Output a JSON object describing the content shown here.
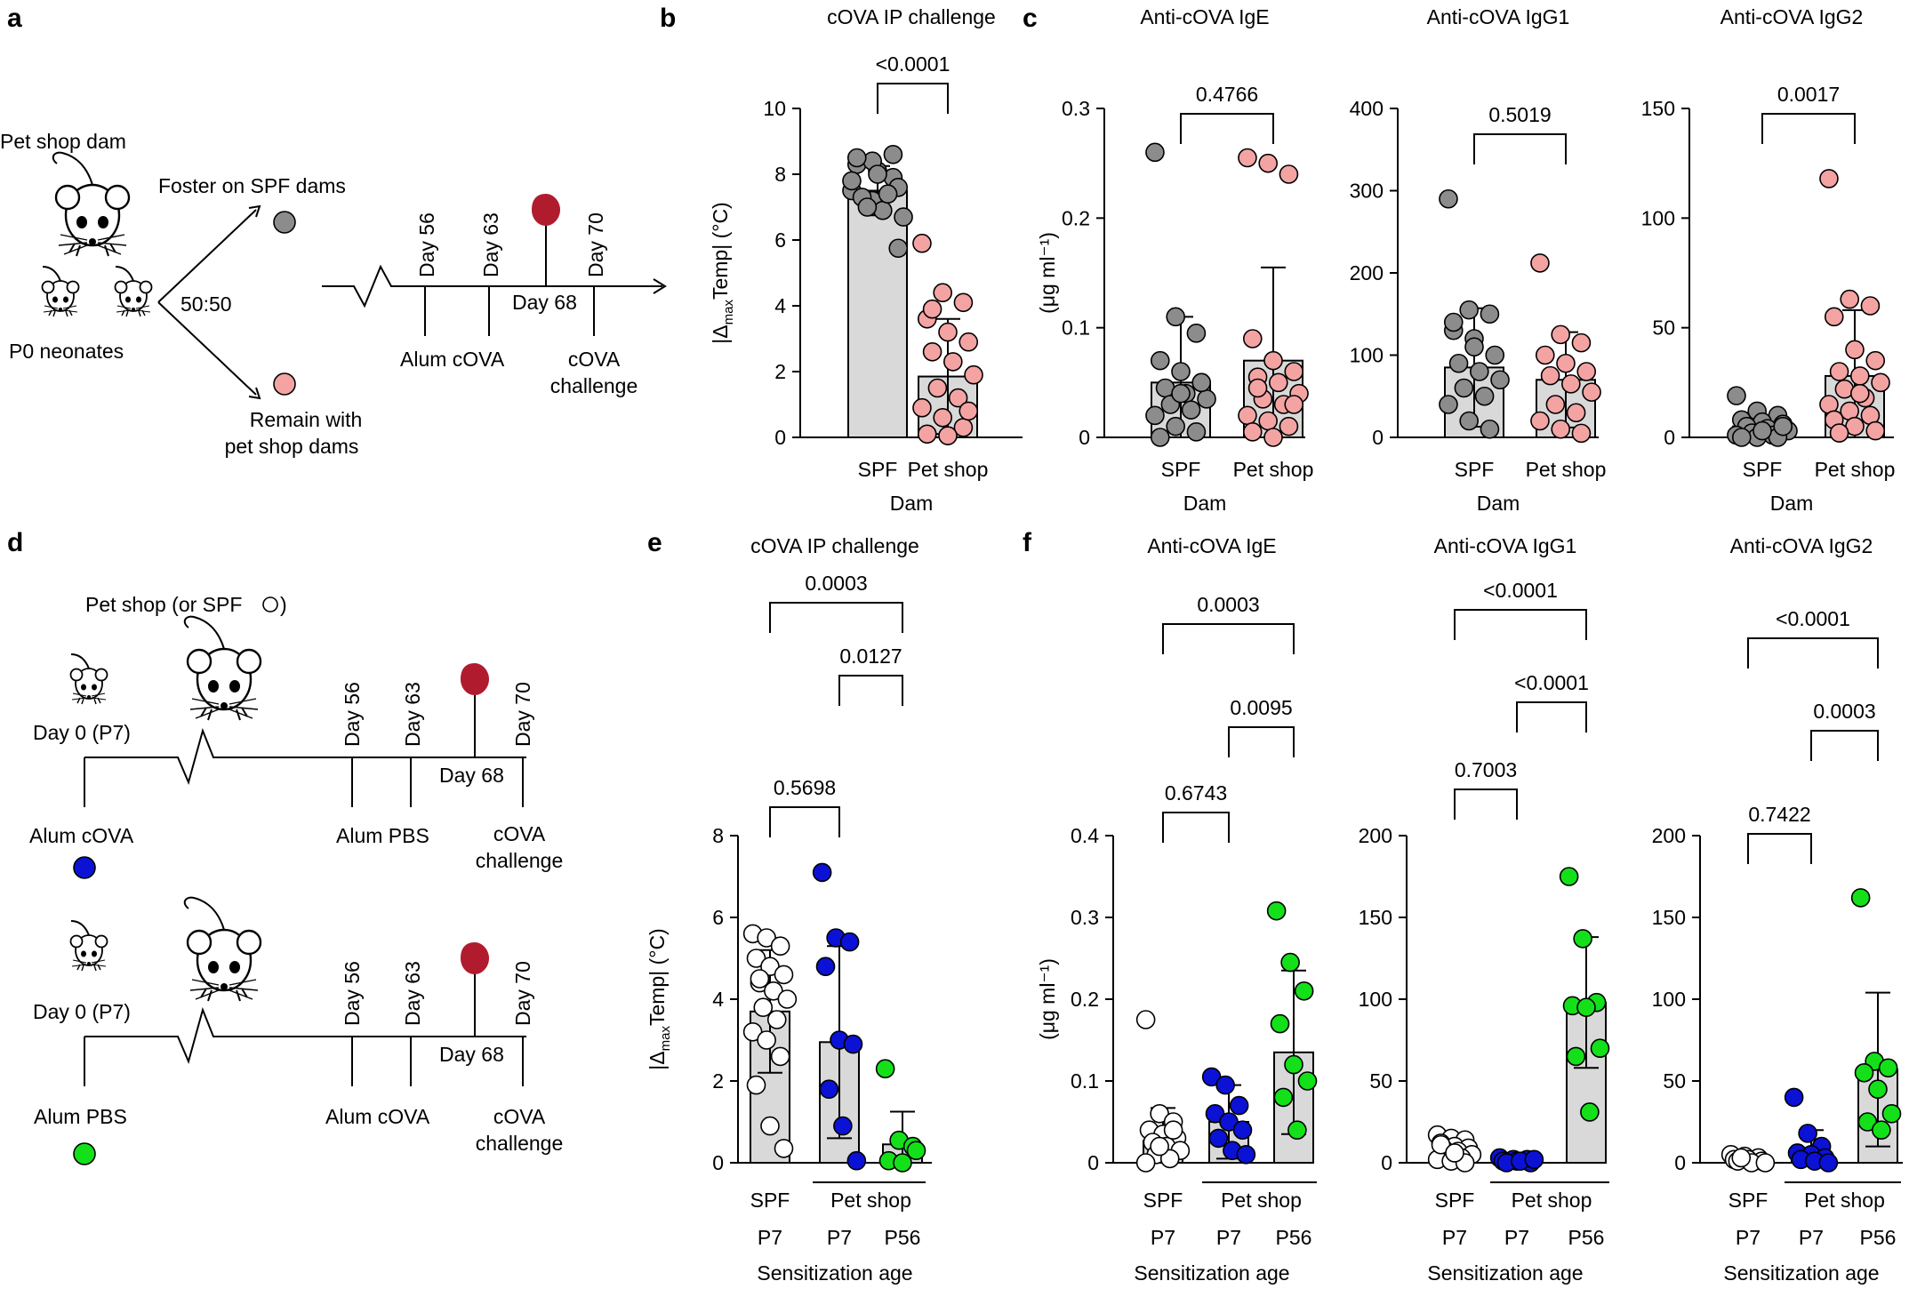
{
  "panels": {
    "a": {
      "letter": "a",
      "dam_label": "Pet shop dam",
      "neonates_label": "P0 neonates",
      "ratio": "50:50",
      "foster_label": "Foster on SPF dams",
      "remain_label_1": "Remain with",
      "remain_label_2": "pet shop dams",
      "day56": "Day 56",
      "day63": "Day 63",
      "day70": "Day 70",
      "day68": "Day 68",
      "alum_cova": "Alum cOVA",
      "cova_1": "cOVA",
      "cova_2": "challenge"
    },
    "b": {
      "letter": "b"
    },
    "c": {
      "letter": "c"
    },
    "d": {
      "letter": "d",
      "header": "Pet shop (or SPF",
      "row1": {
        "day0": "Day 0 (P7)",
        "day56": "Day 56",
        "day63": "Day 63",
        "day68": "Day 68",
        "day70": "Day 70",
        "left_label": "Alum cOVA",
        "mid_label": "Alum PBS",
        "end_1": "cOVA",
        "end_2": "challenge"
      },
      "row2": {
        "day0": "Day 0 (P7)",
        "day56": "Day 56",
        "day63": "Day 63",
        "day68": "Day 68",
        "day70": "Day 70",
        "left_label": "Alum PBS",
        "mid_label": "Alum cOVA",
        "end_1": "cOVA",
        "end_2": "challenge"
      }
    },
    "e": {
      "letter": "e"
    },
    "f": {
      "letter": "f"
    }
  },
  "colors": {
    "spf_dam": "#8c8c8c",
    "pet_shop_dam": "#f4a3a3",
    "spf_p7": "#ffffff",
    "pet_p7": "#0b12d6",
    "pet_p56": "#14e01a",
    "blood_drop": "#b01c2e",
    "bar": "#d9d9d9"
  },
  "chart_data": [
    {
      "id": "b",
      "type": "bar",
      "title": "cOVA IP challenge",
      "ylabel": "|Δmax Temp| (°C)",
      "xlabel": "Dam",
      "ylim": [
        0,
        10
      ],
      "yticks": [
        0,
        2,
        4,
        6,
        8,
        10
      ],
      "categories": [
        "SPF",
        "Pet shop"
      ],
      "bars": [
        7.5,
        1.85
      ],
      "sd": [
        0.75,
        1.75
      ],
      "points": [
        [
          7.5,
          7.2,
          7.9,
          8.3,
          8.1,
          7.6,
          7.3,
          6.9,
          6.7,
          7.0,
          7.4,
          7.8,
          8.4,
          8.6,
          8.5,
          8.0,
          5.75
        ],
        [
          5.9,
          4.4,
          4.1,
          3.6,
          3.2,
          2.9,
          2.6,
          2.3,
          1.9,
          1.5,
          1.2,
          0.9,
          0.6,
          0.3,
          0.1,
          0.05,
          0.8,
          3.9
        ]
      ],
      "brackets": [
        {
          "from": 0,
          "to": 1,
          "label": "<0.0001"
        }
      ]
    },
    {
      "id": "c1",
      "type": "bar",
      "title": "Anti-cOVA IgE",
      "ylabel": "(μg ml⁻¹)",
      "xlabel": "Dam",
      "ylim": [
        0,
        0.3
      ],
      "yticks": [
        0,
        0.1,
        0.2,
        0.3
      ],
      "yticklabels": [
        "0",
        "0.1",
        "0.2",
        "0.3"
      ],
      "categories": [
        "SPF",
        "Pet shop"
      ],
      "bars": [
        0.05,
        0.07
      ],
      "sd": [
        0.06,
        0.085
      ],
      "points": [
        [
          0.26,
          0.11,
          0.095,
          0.07,
          0.06,
          0.05,
          0.045,
          0.04,
          0.035,
          0.03,
          0.025,
          0.02,
          0.01,
          0.005,
          0.0,
          0.04,
          0.05
        ],
        [
          0.255,
          0.25,
          0.24,
          0.09,
          0.07,
          0.06,
          0.055,
          0.05,
          0.04,
          0.035,
          0.03,
          0.02,
          0.015,
          0.01,
          0.005,
          0.0,
          0.03,
          0.045
        ]
      ],
      "brackets": [
        {
          "from": 0,
          "to": 1,
          "label": "0.4766"
        }
      ]
    },
    {
      "id": "c2",
      "type": "bar",
      "title": "Anti-cOVA IgG1",
      "ylabel": "",
      "xlabel": "Dam",
      "ylim": [
        0,
        400
      ],
      "yticks": [
        0,
        100,
        200,
        300,
        400
      ],
      "categories": [
        "SPF",
        "Pet shop"
      ],
      "bars": [
        85,
        70
      ],
      "sd": [
        72,
        58
      ],
      "points": [
        [
          290,
          155,
          150,
          130,
          120,
          100,
          90,
          80,
          70,
          60,
          50,
          40,
          20,
          10,
          140,
          110
        ],
        [
          212,
          125,
          115,
          100,
          90,
          80,
          75,
          65,
          55,
          40,
          30,
          20,
          10,
          5
        ]
      ],
      "brackets": [
        {
          "from": 0,
          "to": 1,
          "label": "0.5019"
        }
      ]
    },
    {
      "id": "c3",
      "type": "bar",
      "title": "Anti-cOVA IgG2",
      "ylabel": "",
      "xlabel": "Dam",
      "ylim": [
        0,
        150
      ],
      "yticks": [
        0,
        50,
        100,
        150
      ],
      "categories": [
        "SPF",
        "Pet shop"
      ],
      "bars": [
        5,
        28
      ],
      "sd": [
        5,
        30
      ],
      "points": [
        [
          19,
          12,
          10,
          8,
          7,
          6,
          5,
          4,
          3,
          2,
          1,
          1,
          0,
          0,
          0,
          3,
          5
        ],
        [
          118,
          63,
          60,
          55,
          40,
          35,
          30,
          28,
          25,
          22,
          18,
          15,
          12,
          10,
          8,
          5,
          3,
          2,
          20
        ]
      ],
      "brackets": [
        {
          "from": 0,
          "to": 1,
          "label": "0.0017"
        }
      ]
    },
    {
      "id": "e",
      "type": "bar",
      "title": "cOVA IP challenge",
      "ylabel": "|Δmax Temp| (°C)",
      "xlabel": "Sensitization age",
      "ylim": [
        0,
        8
      ],
      "yticks": [
        0,
        2,
        4,
        6,
        8
      ],
      "categories": [
        "P7",
        "P7",
        "P56"
      ],
      "group_labels": [
        "SPF",
        "Pet shop"
      ],
      "bars": [
        3.7,
        2.95,
        0.45
      ],
      "sd": [
        1.5,
        2.35,
        0.8
      ],
      "points": [
        [
          5.6,
          5.5,
          5.3,
          5.0,
          4.8,
          4.6,
          4.4,
          4.2,
          4.0,
          3.8,
          3.5,
          3.2,
          3.0,
          2.6,
          1.9,
          0.9,
          0.35,
          4.5
        ],
        [
          7.1,
          5.5,
          5.4,
          4.8,
          3.0,
          2.9,
          1.8,
          0.9,
          0.05
        ],
        [
          2.3,
          0.55,
          0.4,
          0.05,
          0.0,
          0.3
        ]
      ],
      "brackets": [
        {
          "from": 0,
          "to": 2,
          "label": "0.0003"
        },
        {
          "from": 1,
          "to": 2,
          "label": "0.0127"
        },
        {
          "from": 0,
          "to": 1,
          "label": "0.5698"
        }
      ]
    },
    {
      "id": "f1",
      "type": "bar",
      "title": "Anti-cOVA IgE",
      "ylabel": "(μg ml⁻¹)",
      "xlabel": "Sensitization age",
      "ylim": [
        0,
        0.4
      ],
      "yticks": [
        0,
        0.1,
        0.2,
        0.3,
        0.4
      ],
      "yticklabels": [
        "0",
        "0.1",
        "0.2",
        "0.3",
        "0.4"
      ],
      "categories": [
        "P7",
        "P7",
        "P56"
      ],
      "group_labels": [
        "SPF",
        "Pet shop"
      ],
      "bars": [
        0.027,
        0.05,
        0.135
      ],
      "sd": [
        0.04,
        0.045,
        0.1
      ],
      "points": [
        [
          0.175,
          0.06,
          0.05,
          0.04,
          0.035,
          0.03,
          0.025,
          0.02,
          0.015,
          0.01,
          0.005,
          0.0,
          0.02,
          0.04
        ],
        [
          0.105,
          0.095,
          0.07,
          0.06,
          0.05,
          0.04,
          0.03,
          0.015,
          0.01
        ],
        [
          0.308,
          0.245,
          0.21,
          0.17,
          0.12,
          0.1,
          0.08,
          0.04
        ]
      ],
      "brackets": [
        {
          "from": 0,
          "to": 2,
          "label": "0.0003"
        },
        {
          "from": 1,
          "to": 2,
          "label": "0.0095"
        },
        {
          "from": 0,
          "to": 1,
          "label": "0.6743"
        }
      ]
    },
    {
      "id": "f2",
      "type": "bar",
      "title": "Anti-cOVA IgG1",
      "ylabel": "",
      "xlabel": "Sensitization age",
      "ylim": [
        0,
        200
      ],
      "yticks": [
        0,
        50,
        100,
        150,
        200
      ],
      "categories": [
        "P7",
        "P7",
        "P56"
      ],
      "group_labels": [
        "SPF",
        "Pet shop"
      ],
      "bars": [
        8,
        1.5,
        98
      ],
      "sd": [
        6,
        1,
        40
      ],
      "points": [
        [
          17,
          15,
          14,
          12,
          10,
          9,
          8,
          7,
          5,
          4,
          3,
          2,
          1,
          0,
          11,
          6
        ],
        [
          3,
          2,
          2,
          1,
          1,
          0,
          0,
          1,
          2
        ],
        [
          175,
          137,
          98,
          96,
          95,
          70,
          65,
          31
        ]
      ],
      "brackets": [
        {
          "from": 0,
          "to": 2,
          "label": "<0.0001"
        },
        {
          "from": 1,
          "to": 2,
          "label": "<0.0001"
        },
        {
          "from": 0,
          "to": 1,
          "label": "0.7003"
        }
      ]
    },
    {
      "id": "f3",
      "type": "bar",
      "title": "Anti-cOVA IgG2",
      "ylabel": "",
      "xlabel": "Sensitization age",
      "ylim": [
        0,
        200
      ],
      "yticks": [
        0,
        50,
        100,
        150,
        200
      ],
      "categories": [
        "P7",
        "P7",
        "P56"
      ],
      "group_labels": [
        "SPF",
        "Pet shop"
      ],
      "bars": [
        2,
        6,
        57
      ],
      "sd": [
        2,
        14,
        47
      ],
      "points": [
        [
          5,
          4,
          3,
          2,
          2,
          1,
          1,
          0,
          0,
          3
        ],
        [
          40,
          18,
          10,
          6,
          5,
          3,
          2,
          1,
          0
        ],
        [
          162,
          62,
          58,
          55,
          45,
          30,
          25,
          20
        ]
      ],
      "brackets": [
        {
          "from": 0,
          "to": 2,
          "label": "<0.0001"
        },
        {
          "from": 1,
          "to": 2,
          "label": "0.0003"
        },
        {
          "from": 0,
          "to": 1,
          "label": "0.7422"
        }
      ]
    }
  ]
}
